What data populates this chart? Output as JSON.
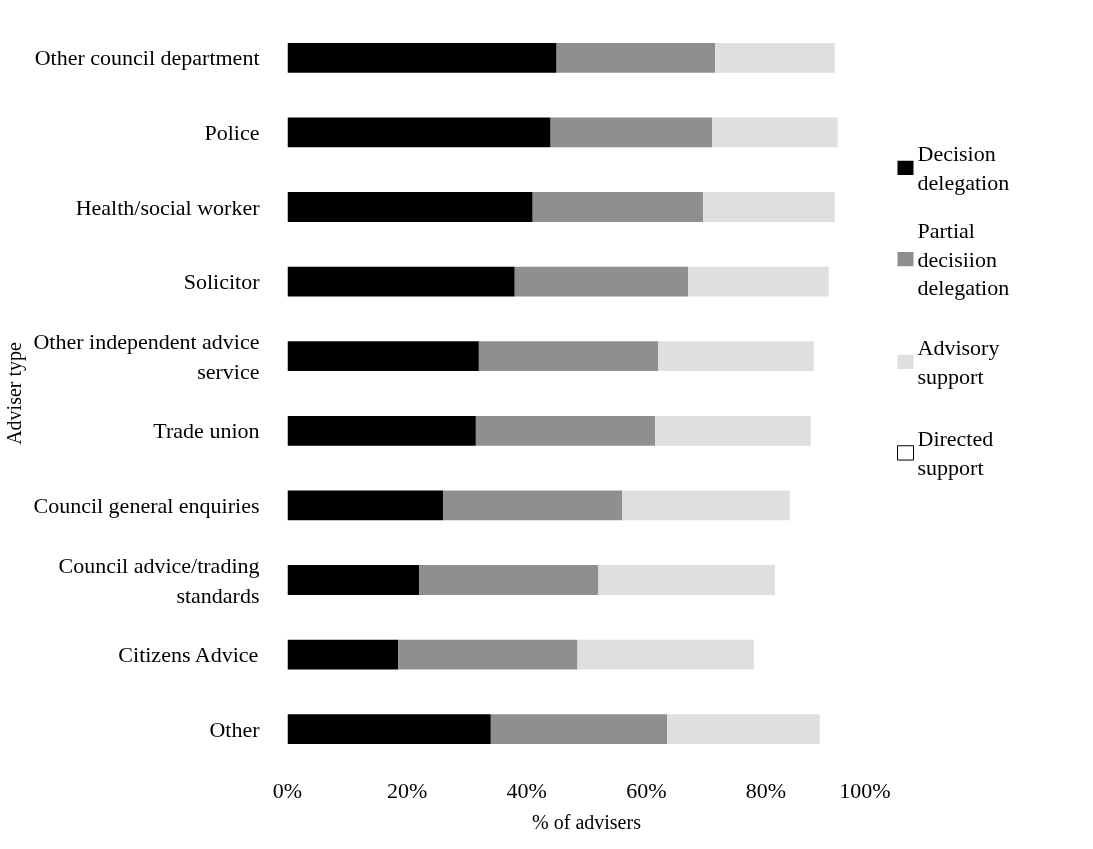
{
  "chart_data": {
    "type": "bar",
    "orientation": "horizontal",
    "stacked": true,
    "ylabel": "Adviser type",
    "xlabel": "% of advisers",
    "categories": [
      "Other council department",
      "Police",
      "Health/social worker",
      "Solicitor",
      "Other independent advice service",
      "Trade union",
      "Council general enquiries",
      "Council advice/trading standards",
      "Citizens Advice",
      "Other"
    ],
    "series": [
      {
        "name": "Decision delegation",
        "color": "#000000",
        "values": [
          45,
          44,
          41,
          38,
          32,
          31.5,
          26,
          22,
          18.5,
          34
        ]
      },
      {
        "name": "Partial decisiion delegation",
        "color": "#8f8f8f",
        "values": [
          26.5,
          27,
          28.5,
          29,
          30,
          30,
          30,
          30,
          30,
          29.5
        ]
      },
      {
        "name": "Advisory support",
        "color": "#dfdfdf",
        "values": [
          20,
          21,
          22,
          23.5,
          26,
          26,
          28,
          29.5,
          29.5,
          25.5
        ]
      },
      {
        "name": "Directed support",
        "color": "#ffffff",
        "values": [
          null,
          null,
          null,
          null,
          null,
          null,
          null,
          null,
          null,
          null
        ]
      }
    ],
    "xlim": [
      0,
      100
    ],
    "xticks": [
      {
        "value": 0,
        "label": "0%"
      },
      {
        "value": 20,
        "label": "20%"
      },
      {
        "value": 40,
        "label": "40%"
      },
      {
        "value": 60,
        "label": "60%"
      },
      {
        "value": 80,
        "label": "80%"
      },
      {
        "value": 100,
        "label": "100%"
      }
    ],
    "grid": false,
    "legend": "right"
  }
}
